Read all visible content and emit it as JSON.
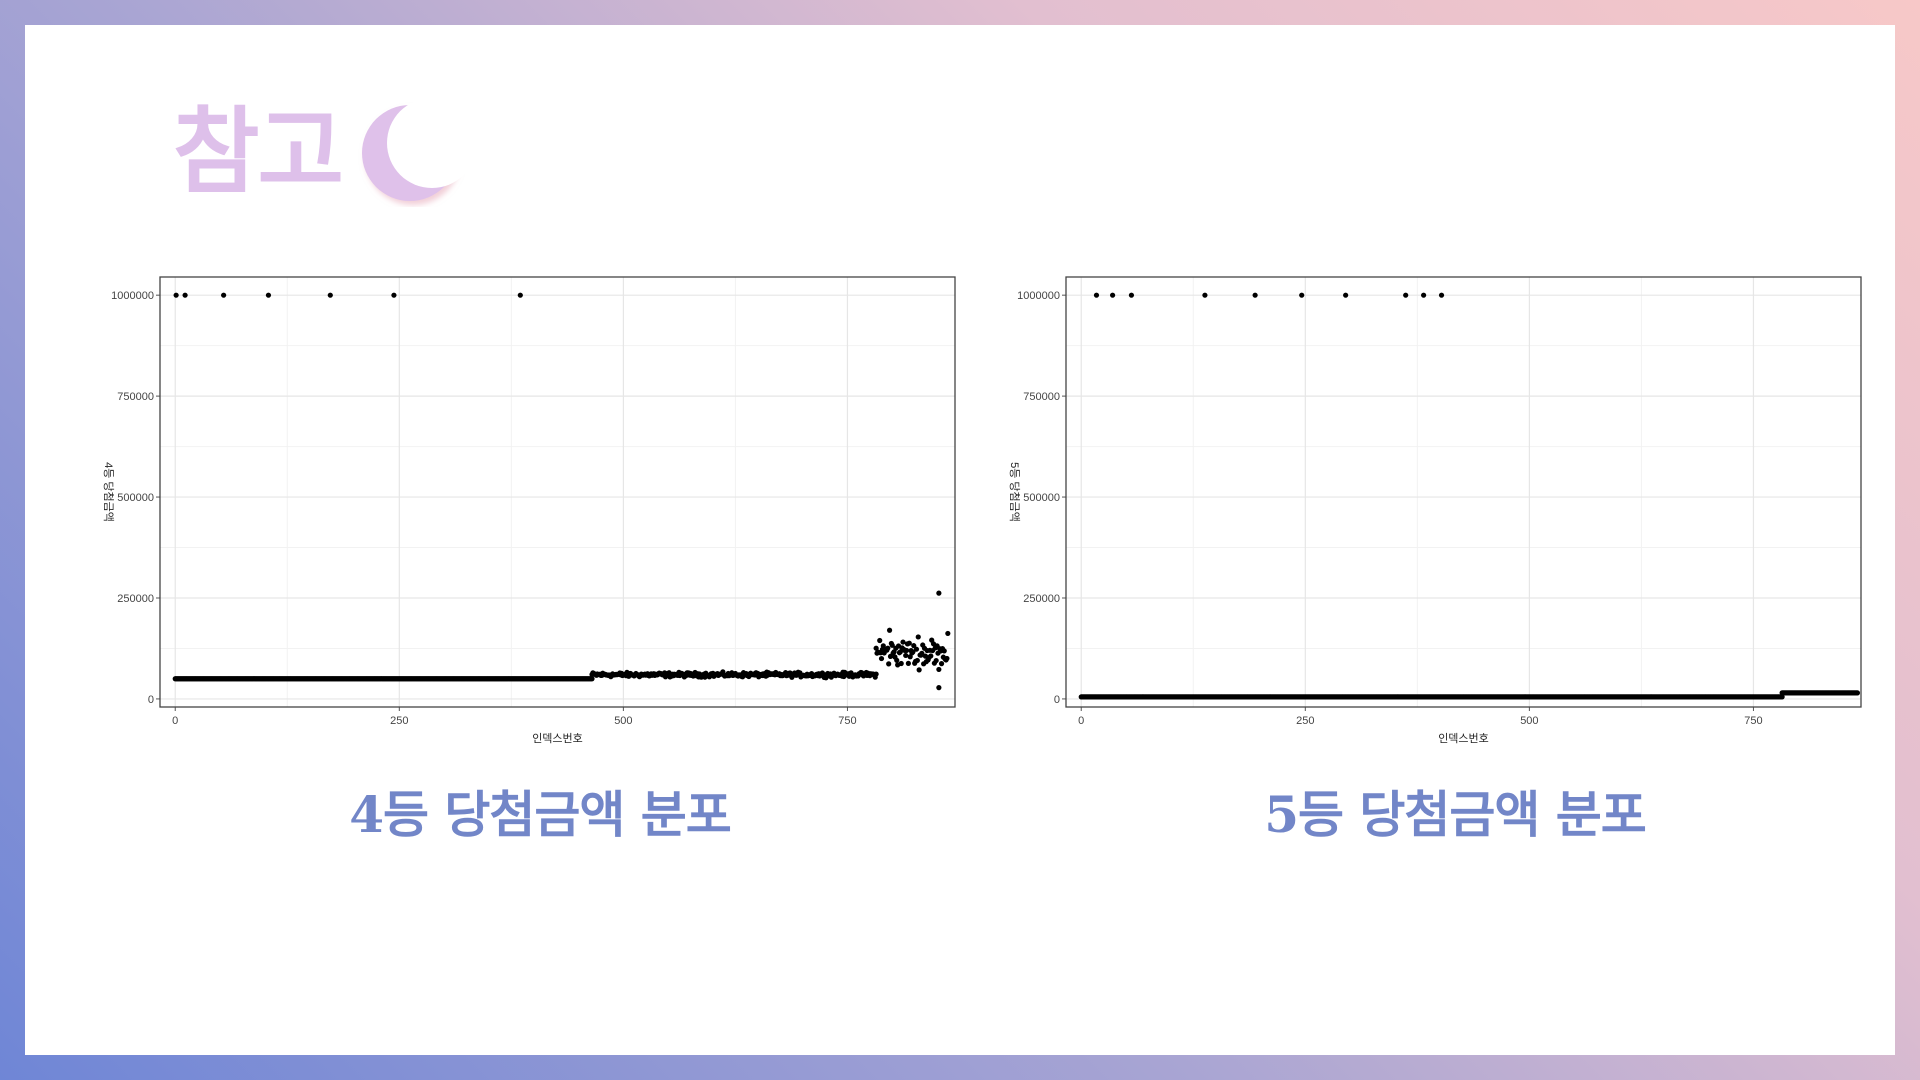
{
  "slide": {
    "title": "참고",
    "colors": {
      "title": "#dec0ea",
      "caption": "#7286c8",
      "moon": "#dfc1ea"
    },
    "icons": [
      "crescent-moon-icon"
    ]
  },
  "captions": [
    "4등 당첨금액 분포",
    "5등 당첨금액 분포"
  ],
  "chart_data": [
    {
      "type": "scatter",
      "title": "",
      "xlabel": "인덱스번호",
      "ylabel": "4등 당첨금액",
      "xlim": [
        -17,
        870
      ],
      "ylim": [
        -20000,
        1045000
      ],
      "xticks": [
        0,
        250,
        500,
        750
      ],
      "yticks": [
        0,
        250000,
        500000,
        750000,
        1000000
      ],
      "ytick_labels": [
        "0",
        "250000",
        "500000",
        "750000",
        "1000000"
      ],
      "grid": true,
      "legend": "none",
      "outliers": {
        "x": [
          1,
          11,
          54,
          104,
          173,
          244,
          385
        ],
        "y": [
          1000000,
          1000000,
          1000000,
          1000000,
          1000000,
          1000000,
          1000000
        ]
      },
      "segments": [
        {
          "x": [
            0,
            465
          ],
          "y": 50000,
          "description": "constant value"
        },
        {
          "x": [
            465,
            782
          ],
          "y_center": 60000,
          "spread": 8000,
          "description": "dense scatter"
        },
        {
          "x": [
            782,
            862
          ],
          "y_center": 115000,
          "spread": 50000,
          "description": "scattered"
        }
      ],
      "extra_points": {
        "x": [
          852,
          852
        ],
        "y": [
          262000,
          28000
        ]
      }
    },
    {
      "type": "scatter",
      "title": "",
      "xlabel": "인덱스번호",
      "ylabel": "5등 당첨금액",
      "xlim": [
        -17,
        870
      ],
      "ylim": [
        -20000,
        1045000
      ],
      "xticks": [
        0,
        250,
        500,
        750
      ],
      "yticks": [
        0,
        250000,
        500000,
        750000,
        1000000
      ],
      "ytick_labels": [
        "0",
        "250000",
        "500000",
        "750000",
        "1000000"
      ],
      "grid": true,
      "legend": "none",
      "outliers": {
        "x": [
          17,
          35,
          56,
          138,
          194,
          246,
          295,
          362,
          382,
          402
        ],
        "y": [
          1000000,
          1000000,
          1000000,
          1000000,
          1000000,
          1000000,
          1000000,
          1000000,
          1000000,
          1000000
        ]
      },
      "segments": [
        {
          "x": [
            0,
            782
          ],
          "y": 5000,
          "description": "constant value"
        },
        {
          "x": [
            782,
            866
          ],
          "y": 15000,
          "description": "constant value"
        }
      ]
    }
  ]
}
